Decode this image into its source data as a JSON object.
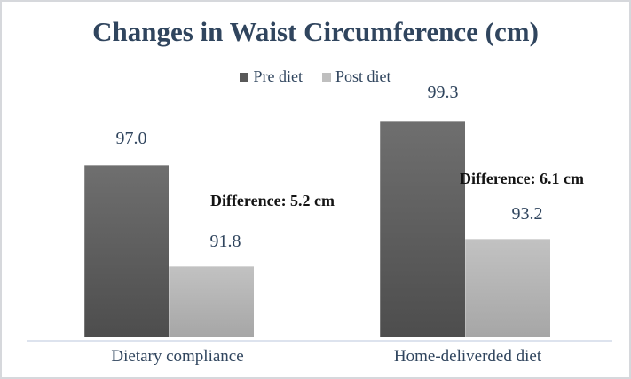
{
  "colors": {
    "pre_diet_bar": "#595959",
    "post_diet_bar": "#bfbfbf",
    "title_text": "#30455e",
    "difference_text": "#141414",
    "axis_line": "#dde3ee",
    "frame_border": "#d6d8dc"
  },
  "chart_data": {
    "type": "bar",
    "title": "Changes in Waist Circumference (cm)",
    "xlabel": "",
    "ylabel": "",
    "categories": [
      "Dietary compliance",
      "Home-deliverded diet"
    ],
    "series": [
      {
        "name": "Pre diet",
        "color": "#595959",
        "values": [
          97.0,
          99.3
        ],
        "labels": [
          "97.0",
          "99.3"
        ]
      },
      {
        "name": "Post diet",
        "color": "#bfbfbf",
        "values": [
          91.8,
          93.2
        ],
        "labels": [
          "91.8",
          "93.2"
        ]
      }
    ],
    "annotations": [
      {
        "text": "Difference: 5.2 cm",
        "group": "Dietary compliance"
      },
      {
        "text": "Difference: 6.1 cm",
        "group": "Home-deliverded diet"
      }
    ],
    "ylim": [
      88.1,
      103
    ],
    "grid": false,
    "y_axis_labels_shown": false,
    "legend_position": "top-center"
  }
}
